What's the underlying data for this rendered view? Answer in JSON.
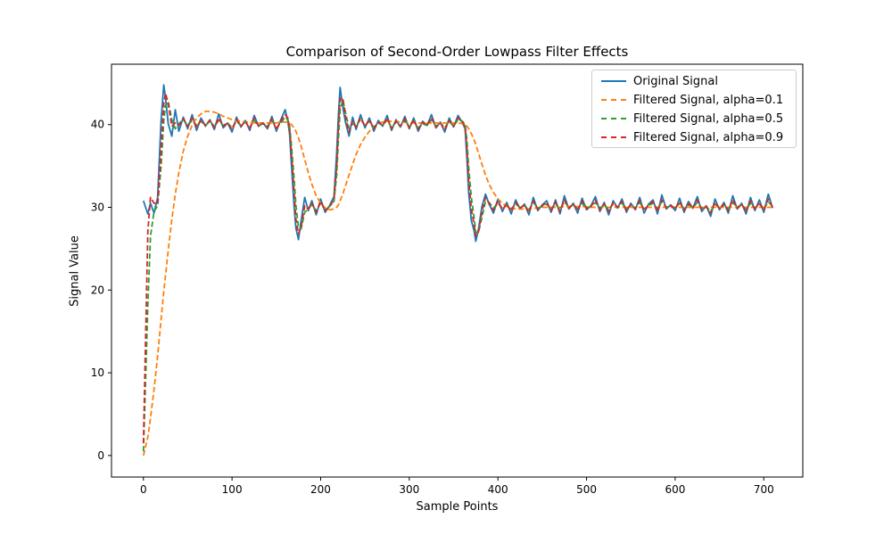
{
  "chart_data": {
    "type": "line",
    "title": "Comparison of Second-Order Lowpass Filter Effects",
    "xlabel": "Sample Points",
    "ylabel": "Signal Value",
    "xlim": [
      -36,
      744
    ],
    "ylim": [
      -2.6,
      47.3
    ],
    "x_ticks": [
      0,
      100,
      200,
      300,
      400,
      500,
      600,
      700
    ],
    "y_ticks": [
      0,
      10,
      20,
      30,
      40
    ],
    "legend_position": "top-right",
    "grid": false,
    "x": [
      0,
      5,
      8,
      12,
      16,
      20,
      23,
      25,
      28,
      32,
      36,
      40,
      45,
      50,
      55,
      60,
      65,
      70,
      75,
      80,
      85,
      90,
      95,
      100,
      105,
      110,
      115,
      120,
      125,
      130,
      135,
      140,
      145,
      150,
      155,
      160,
      163,
      165,
      167,
      170,
      172,
      175,
      178,
      182,
      186,
      190,
      195,
      200,
      205,
      210,
      215,
      218,
      220,
      222,
      225,
      228,
      232,
      236,
      240,
      245,
      250,
      255,
      260,
      265,
      270,
      275,
      280,
      285,
      290,
      295,
      300,
      305,
      310,
      315,
      320,
      325,
      330,
      335,
      340,
      345,
      350,
      355,
      360,
      363,
      365,
      367,
      370,
      373,
      375,
      378,
      382,
      386,
      390,
      395,
      400,
      405,
      410,
      415,
      420,
      425,
      430,
      435,
      440,
      445,
      450,
      455,
      460,
      465,
      470,
      475,
      480,
      485,
      490,
      495,
      500,
      505,
      510,
      515,
      520,
      525,
      530,
      535,
      540,
      545,
      550,
      555,
      560,
      565,
      570,
      575,
      580,
      585,
      590,
      595,
      600,
      605,
      610,
      615,
      620,
      625,
      630,
      635,
      640,
      645,
      650,
      655,
      660,
      665,
      670,
      675,
      680,
      685,
      690,
      695,
      700,
      705,
      710
    ],
    "series": [
      {
        "name": "Original Signal",
        "color": "#1f77b4",
        "dash": "solid",
        "values": [
          30.8,
          29.2,
          30.5,
          29.3,
          31.2,
          40.5,
          44.8,
          43.2,
          40.1,
          38.6,
          41.8,
          39.2,
          40.9,
          39.5,
          41.2,
          39.3,
          40.8,
          39.8,
          40.6,
          39.4,
          41.3,
          39.6,
          40.2,
          39.1,
          40.9,
          39.7,
          40.5,
          39.3,
          41.1,
          39.8,
          40.2,
          39.5,
          41.0,
          39.2,
          40.6,
          41.8,
          40.4,
          38.8,
          35.2,
          30.1,
          27.5,
          26.1,
          28.4,
          31.2,
          29.6,
          30.8,
          29.1,
          31.0,
          29.4,
          30.2,
          31.3,
          36.5,
          41.2,
          44.5,
          42.1,
          40.3,
          38.6,
          40.9,
          39.4,
          41.2,
          39.6,
          40.8,
          39.2,
          40.5,
          39.8,
          41.1,
          39.3,
          40.6,
          39.7,
          41.0,
          39.5,
          40.8,
          39.2,
          40.4,
          39.9,
          41.2,
          39.6,
          40.3,
          39.1,
          40.8,
          39.7,
          41.1,
          40.2,
          39.5,
          36.0,
          31.8,
          28.4,
          27.2,
          25.9,
          27.3,
          30.1,
          31.6,
          30.4,
          29.3,
          31.0,
          29.5,
          30.6,
          29.2,
          30.9,
          29.8,
          30.4,
          29.1,
          31.2,
          29.6,
          30.3,
          30.8,
          29.4,
          30.9,
          29.2,
          31.4,
          29.8,
          30.5,
          29.3,
          31.1,
          29.7,
          30.2,
          31.3,
          29.5,
          30.6,
          29.1,
          30.8,
          29.9,
          31.0,
          29.4,
          30.5,
          29.7,
          31.2,
          29.3,
          30.4,
          30.9,
          29.2,
          31.5,
          29.8,
          30.3,
          29.6,
          31.1,
          29.4,
          30.7,
          29.9,
          31.3,
          29.5,
          30.2,
          28.9,
          31.0,
          29.7,
          30.6,
          29.3,
          31.4,
          29.8,
          30.5,
          29.2,
          31.2,
          29.6,
          30.9,
          29.4,
          31.6,
          29.9
        ]
      },
      {
        "name": "Filtered Signal, alpha=0.1",
        "color": "#ff7f0e",
        "dash": "dashed",
        "values": [
          0.0,
          2.2,
          4.5,
          8.0,
          12.0,
          16.5,
          19.8,
          21.8,
          24.8,
          28.5,
          31.6,
          34.2,
          36.8,
          38.6,
          39.9,
          40.8,
          41.3,
          41.6,
          41.6,
          41.5,
          41.3,
          41.0,
          40.8,
          40.6,
          40.5,
          40.4,
          40.3,
          40.3,
          40.2,
          40.2,
          40.2,
          40.2,
          40.2,
          40.2,
          40.3,
          40.3,
          40.3,
          40.2,
          40.0,
          39.6,
          39.2,
          38.4,
          37.4,
          35.8,
          34.2,
          32.8,
          31.4,
          30.5,
          29.9,
          29.7,
          29.8,
          30.0,
          30.3,
          30.8,
          31.6,
          32.6,
          33.9,
          35.2,
          36.4,
          37.6,
          38.5,
          39.2,
          39.7,
          40.1,
          40.3,
          40.4,
          40.4,
          40.4,
          40.3,
          40.3,
          40.2,
          40.2,
          40.2,
          40.2,
          40.2,
          40.2,
          40.2,
          40.2,
          40.2,
          40.2,
          40.2,
          40.2,
          40.1,
          40.0,
          39.8,
          39.5,
          38.9,
          38.2,
          37.6,
          36.6,
          35.2,
          33.9,
          32.8,
          31.8,
          31.0,
          30.5,
          30.1,
          29.9,
          29.8,
          29.8,
          29.8,
          29.8,
          29.9,
          29.9,
          30.0,
          30.0,
          30.0,
          30.0,
          30.0,
          30.1,
          30.1,
          30.1,
          30.1,
          30.1,
          30.1,
          30.0,
          30.0,
          30.0,
          30.0,
          30.0,
          30.0,
          30.0,
          30.0,
          30.0,
          30.0,
          30.0,
          30.0,
          30.0,
          30.0,
          30.0,
          30.0,
          30.0,
          30.0,
          30.0,
          30.0,
          30.0,
          30.0,
          30.0,
          30.0,
          30.0,
          30.0,
          30.0,
          30.0,
          30.0,
          30.0,
          30.0,
          30.0,
          30.0,
          30.0,
          30.0,
          30.0,
          30.0,
          30.0,
          30.0,
          30.0,
          30.0,
          30.0
        ]
      },
      {
        "name": "Filtered Signal, alpha=0.5",
        "color": "#2ca02c",
        "dash": "dashed",
        "values": [
          0.5,
          18.0,
          26.5,
          29.5,
          30.2,
          35.0,
          40.5,
          42.3,
          42.8,
          40.6,
          39.5,
          40.1,
          40.6,
          39.9,
          40.5,
          39.9,
          40.4,
          39.9,
          40.4,
          39.8,
          40.5,
          39.9,
          40.2,
          39.6,
          40.4,
          39.9,
          40.3,
          39.7,
          40.5,
          39.9,
          40.1,
          39.8,
          40.5,
          39.6,
          40.2,
          40.9,
          40.6,
          39.8,
          37.5,
          33.5,
          30.3,
          27.6,
          27.4,
          29.4,
          29.8,
          30.3,
          29.6,
          30.5,
          29.7,
          30.1,
          30.7,
          33.9,
          38.2,
          41.8,
          43.0,
          41.5,
          39.5,
          40.1,
          39.9,
          40.6,
          39.9,
          40.4,
          39.7,
          40.2,
          39.9,
          40.6,
          39.6,
          40.3,
          39.8,
          40.5,
          39.7,
          40.4,
          39.6,
          40.1,
          39.9,
          40.6,
          39.8,
          40.2,
          39.6,
          40.4,
          39.8,
          40.6,
          40.4,
          40.0,
          38.2,
          34.8,
          31.2,
          28.8,
          27.0,
          26.9,
          28.8,
          30.7,
          30.6,
          29.9,
          30.5,
          29.9,
          30.3,
          29.8,
          30.4,
          30.0,
          30.2,
          29.7,
          30.6,
          29.9,
          30.1,
          30.4,
          29.8,
          30.4,
          29.7,
          30.7,
          30.0,
          30.3,
          29.8,
          30.5,
          29.9,
          30.1,
          30.6,
          29.9,
          30.3,
          29.7,
          30.4,
          30.0,
          30.5,
          29.8,
          30.2,
          29.9,
          30.6,
          29.8,
          30.2,
          30.5,
          29.8,
          30.7,
          30.0,
          30.2,
          29.9,
          30.5,
          29.8,
          30.3,
          30.0,
          30.6,
          29.9,
          30.1,
          29.5,
          30.4,
          29.9,
          30.3,
          29.8,
          30.6,
          30.0,
          30.3,
          29.7,
          30.5,
          29.9,
          30.4,
          29.8,
          30.7,
          30.1
        ]
      },
      {
        "name": "Filtered Signal, alpha=0.9",
        "color": "#d62728",
        "dash": "dashed",
        "values": [
          1.5,
          27.0,
          31.2,
          30.5,
          30.4,
          37.0,
          42.5,
          43.8,
          42.5,
          39.8,
          40.2,
          39.9,
          40.7,
          39.8,
          40.8,
          39.7,
          40.6,
          39.9,
          40.5,
          39.6,
          40.8,
          39.8,
          40.2,
          39.4,
          40.6,
          39.8,
          40.4,
          39.5,
          40.8,
          39.8,
          40.2,
          39.6,
          40.7,
          39.4,
          40.4,
          41.2,
          40.8,
          39.5,
          36.5,
          31.8,
          28.6,
          26.8,
          27.6,
          30.2,
          29.8,
          30.5,
          29.4,
          30.7,
          29.6,
          30.1,
          30.9,
          35.0,
          39.8,
          43.2,
          43.2,
          41.0,
          39.1,
          40.4,
          39.7,
          40.8,
          39.8,
          40.6,
          39.5,
          40.3,
          39.9,
          40.8,
          39.5,
          40.4,
          39.8,
          40.7,
          39.6,
          40.6,
          39.4,
          40.3,
          39.9,
          40.8,
          39.7,
          40.2,
          39.4,
          40.5,
          39.8,
          40.8,
          40.3,
          39.8,
          37.2,
          33.2,
          29.8,
          28.0,
          26.5,
          27.0,
          29.4,
          31.2,
          30.5,
          29.6,
          30.7,
          29.7,
          30.4,
          29.5,
          30.6,
          29.9,
          30.3,
          29.4,
          30.8,
          29.8,
          30.2,
          30.6,
          29.6,
          30.6,
          29.5,
          30.9,
          29.9,
          30.4,
          29.6,
          30.8,
          29.8,
          30.1,
          30.9,
          29.7,
          30.4,
          29.5,
          30.6,
          30.0,
          30.7,
          29.6,
          30.3,
          29.8,
          30.8,
          29.6,
          30.3,
          30.7,
          29.5,
          30.9,
          29.9,
          30.2,
          29.8,
          30.7,
          29.6,
          30.5,
          29.9,
          30.9,
          29.7,
          30.1,
          29.3,
          30.6,
          29.8,
          30.4,
          29.6,
          30.9,
          29.9,
          30.4,
          29.5,
          30.8,
          29.7,
          30.6,
          29.6,
          31.0,
          30.0
        ]
      }
    ]
  }
}
